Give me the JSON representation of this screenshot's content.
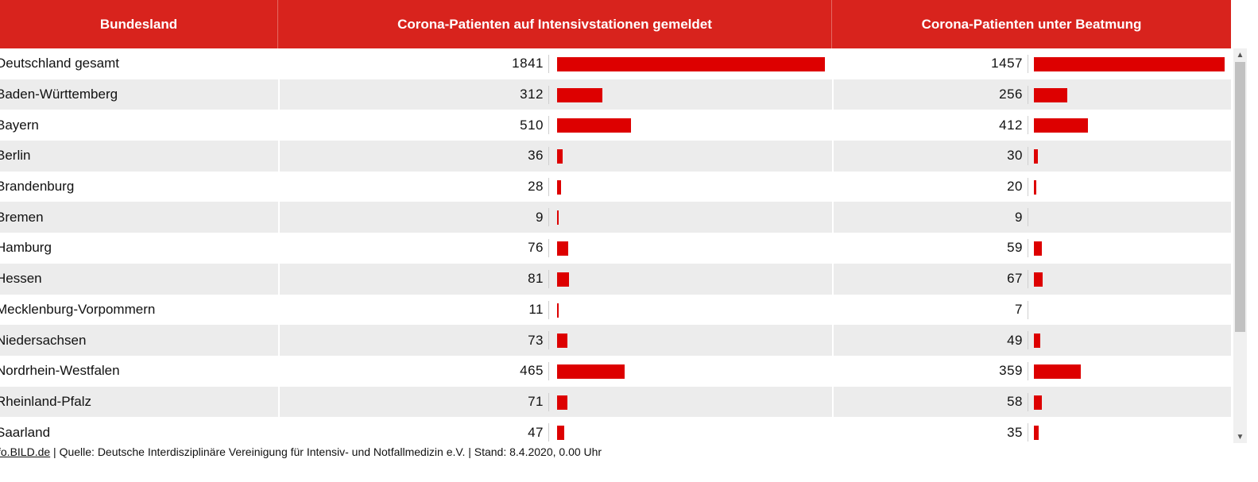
{
  "chart_data": {
    "type": "bar",
    "columns": [
      "Bundesland",
      "Corona-Patienten auf Intensivstationen gemeldet",
      "Corona-Patienten unter Beatmung"
    ],
    "categories": [
      "Deutschland gesamt",
      "Baden-Württemberg",
      "Bayern",
      "Berlin",
      "Brandenburg",
      "Bremen",
      "Hamburg",
      "Hessen",
      "Mecklenburg-Vorpommern",
      "Niedersachsen",
      "Nordrhein-Westfalen",
      "Rheinland-Pfalz",
      "Saarland"
    ],
    "series": [
      {
        "name": "Corona-Patienten auf Intensivstationen gemeldet",
        "values": [
          1841,
          312,
          510,
          36,
          28,
          9,
          76,
          81,
          11,
          73,
          465,
          71,
          47
        ]
      },
      {
        "name": "Corona-Patienten unter Beatmung",
        "values": [
          1457,
          256,
          412,
          30,
          20,
          9,
          59,
          67,
          7,
          49,
          359,
          58,
          35
        ]
      }
    ],
    "bar_color": "#dd0000",
    "header_color": "#d8231d"
  },
  "footer": {
    "link": "fo.BILD.de",
    "text": " | Quelle: Deutsche Interdisziplinäre Vereinigung für Intensiv- und Notfallmedizin e.V. | Stand: 8.4.2020, 0.00 Uhr"
  },
  "scrollbar": {
    "up": "▲",
    "down": "▼"
  }
}
